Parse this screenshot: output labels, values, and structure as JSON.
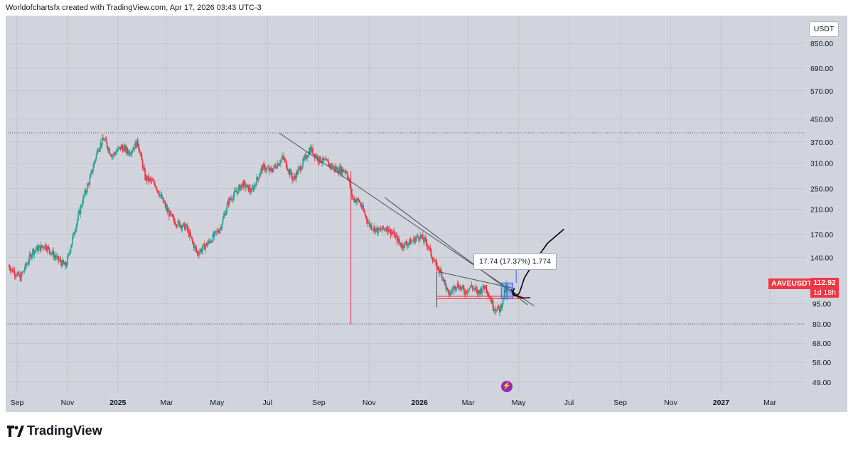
{
  "header": {
    "attribution": "Worldofchartsfx created with TradingView.com, Apr 17, 2026 03:43 UTC-3"
  },
  "footer": {
    "brand": "TradingView",
    "logo_icon": "tradingview-logo-icon"
  },
  "colors": {
    "chart_bg": "#d1d4dc",
    "up": "#26a69a",
    "down": "#f23645",
    "trendline": "#4a4e5a",
    "projection": "#000000",
    "measure": "#2962ff"
  },
  "chart_data": {
    "type": "candlestick",
    "symbol": "AAVEUSDT",
    "currency": "USDT",
    "scale": "log",
    "last_price": "112.92",
    "countdown": "1d 18h",
    "measure_label": "17.74 (17.37%) 1,774",
    "y_ticks": [
      "850.00",
      "690.00",
      "570.00",
      "450.00",
      "370.00",
      "310.00",
      "250.00",
      "210.00",
      "170.00",
      "140.00",
      "95.00",
      "80.00",
      "68.00",
      "58.00",
      "49.00"
    ],
    "y_tick_values": [
      850,
      690,
      570,
      450,
      370,
      310,
      250,
      210,
      170,
      140,
      95,
      80,
      68,
      58,
      49
    ],
    "x_ticks": [
      "Sep",
      "Nov",
      "2025",
      "Mar",
      "May",
      "Jul",
      "Sep",
      "Nov",
      "2026",
      "Mar",
      "May",
      "Jul",
      "Sep",
      "Nov",
      "2027",
      "Mar"
    ],
    "x_tick_bold": [
      "2025",
      "2026",
      "2027"
    ],
    "x_tick_dates": [
      "2024-09-01",
      "2024-11-01",
      "2025-01-01",
      "2025-03-01",
      "2025-05-01",
      "2025-07-01",
      "2025-09-01",
      "2025-11-01",
      "2026-01-01",
      "2026-03-01",
      "2026-05-01",
      "2026-07-01",
      "2026-09-01",
      "2026-11-01",
      "2027-01-01",
      "2027-03-01"
    ],
    "resistance_level": 400,
    "support_level": 80,
    "price_path": [
      [
        "2024-08-22",
        130
      ],
      [
        "2024-09-05",
        118
      ],
      [
        "2024-09-20",
        148
      ],
      [
        "2024-10-05",
        155
      ],
      [
        "2024-10-20",
        138
      ],
      [
        "2024-10-30",
        130
      ],
      [
        "2024-11-10",
        178
      ],
      [
        "2024-11-20",
        230
      ],
      [
        "2024-11-28",
        270
      ],
      [
        "2024-12-08",
        352
      ],
      [
        "2024-12-15",
        380
      ],
      [
        "2024-12-25",
        330
      ],
      [
        "2025-01-05",
        355
      ],
      [
        "2025-01-15",
        340
      ],
      [
        "2025-01-25",
        370
      ],
      [
        "2025-02-03",
        275
      ],
      [
        "2025-02-15",
        260
      ],
      [
        "2025-03-01",
        210
      ],
      [
        "2025-03-10",
        190
      ],
      [
        "2025-03-25",
        180
      ],
      [
        "2025-04-07",
        145
      ],
      [
        "2025-04-22",
        160
      ],
      [
        "2025-05-05",
        180
      ],
      [
        "2025-05-15",
        225
      ],
      [
        "2025-06-01",
        260
      ],
      [
        "2025-06-12",
        245
      ],
      [
        "2025-06-25",
        300
      ],
      [
        "2025-07-05",
        290
      ],
      [
        "2025-07-20",
        325
      ],
      [
        "2025-08-01",
        270
      ],
      [
        "2025-08-10",
        300
      ],
      [
        "2025-08-22",
        350
      ],
      [
        "2025-09-01",
        320
      ],
      [
        "2025-09-10",
        312
      ],
      [
        "2025-09-22",
        295
      ],
      [
        "2025-10-05",
        290
      ],
      [
        "2025-10-12",
        230
      ],
      [
        "2025-10-20",
        225
      ],
      [
        "2025-11-01",
        185
      ],
      [
        "2025-11-12",
        175
      ],
      [
        "2025-11-22",
        180
      ],
      [
        "2025-12-01",
        170
      ],
      [
        "2025-12-10",
        155
      ],
      [
        "2025-12-22",
        160
      ],
      [
        "2026-01-01",
        168
      ],
      [
        "2026-01-10",
        158
      ],
      [
        "2026-01-20",
        132
      ],
      [
        "2026-01-28",
        122
      ],
      [
        "2026-02-05",
        102
      ],
      [
        "2026-02-15",
        112
      ],
      [
        "2026-02-25",
        105
      ],
      [
        "2026-03-05",
        110
      ],
      [
        "2026-03-12",
        104
      ],
      [
        "2026-03-22",
        110
      ],
      [
        "2026-04-01",
        92
      ],
      [
        "2026-04-08",
        90
      ],
      [
        "2026-04-12",
        98
      ],
      [
        "2026-04-17",
        112.92
      ]
    ],
    "trendlines": [
      {
        "from": [
          "2025-07-15",
          400
        ],
        "to": [
          "2026-05-20",
          93
        ]
      },
      {
        "from": [
          "2025-11-20",
          232
        ],
        "to": [
          "2026-05-12",
          94
        ]
      },
      {
        "from": [
          "2026-01-25",
          124
        ],
        "to": [
          "2026-04-25",
          108
        ]
      }
    ],
    "projection": [
      [
        "2026-04-26",
        108
      ],
      [
        "2026-05-08",
        118
      ],
      [
        "2026-05-20",
        135
      ],
      [
        "2026-06-05",
        158
      ],
      [
        "2026-06-25",
        178
      ]
    ]
  }
}
